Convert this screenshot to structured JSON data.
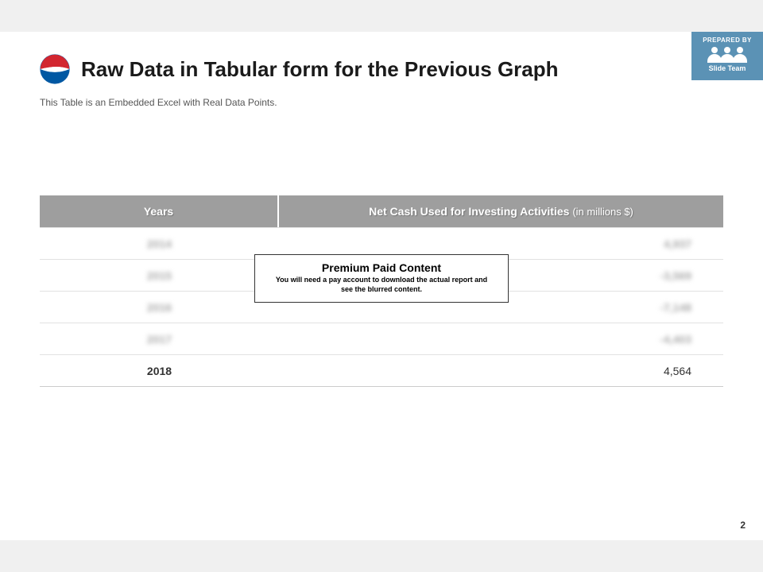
{
  "header": {
    "title": "Raw Data in Tabular form for the Previous Graph",
    "subtitle": "This Table is an Embedded Excel with Real Data Points.",
    "logo_colors": {
      "top": "#d22630",
      "bottom": "#0058a3",
      "mid": "#ffffff"
    }
  },
  "prepared": {
    "label": "PREPARED BY",
    "brand": "Slide Team",
    "bg": "#5b92b5"
  },
  "table": {
    "header_bg": "#9e9e9e",
    "columns": {
      "year": "Years",
      "value": "Net Cash Used for Investing Activities",
      "value_suffix": "(in millions $)"
    },
    "rows": [
      {
        "year": "2014",
        "value": "4,937",
        "blurred": true
      },
      {
        "year": "2015",
        "value": "-3,569",
        "blurred": true
      },
      {
        "year": "2016",
        "value": "-7,148",
        "blurred": true
      },
      {
        "year": "2017",
        "value": "-4,403",
        "blurred": true
      },
      {
        "year": "2018",
        "value": "4,564",
        "blurred": false
      }
    ]
  },
  "paywall": {
    "title": "Premium Paid Content",
    "subtitle": "You will need a pay account to download the actual report and see the blurred content."
  },
  "page_number": "2"
}
